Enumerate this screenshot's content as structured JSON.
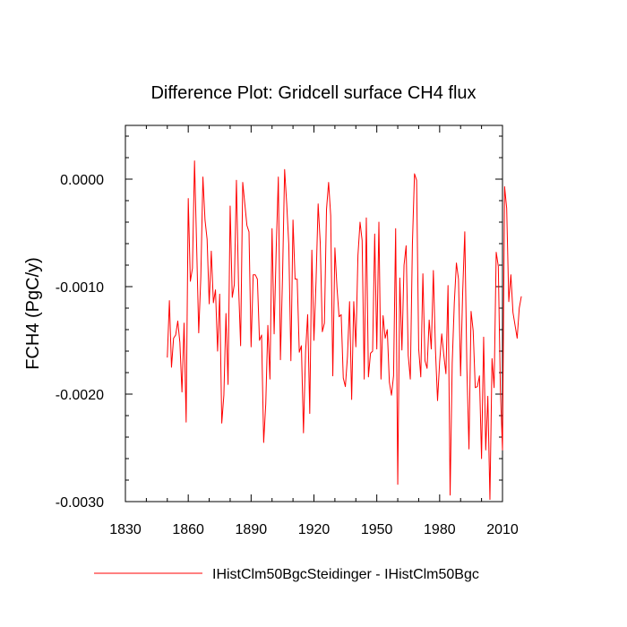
{
  "chart_data": {
    "type": "line",
    "title": "Difference Plot: Gridcell surface CH4 flux",
    "ylabel": "FCH4  (PgC/y)",
    "xlabel": "",
    "xlim": [
      1830,
      2010
    ],
    "ylim": [
      -0.003,
      0.0005
    ],
    "x_ticks": [
      {
        "value": 1830,
        "label": "1830"
      },
      {
        "value": 1860,
        "label": "1860"
      },
      {
        "value": 1890,
        "label": "1890"
      },
      {
        "value": 1920,
        "label": "1920"
      },
      {
        "value": 1950,
        "label": "1950"
      },
      {
        "value": 1980,
        "label": "1980"
      },
      {
        "value": 2010,
        "label": "2010"
      }
    ],
    "y_ticks": [
      {
        "value": 0.0,
        "label": "0.0000"
      },
      {
        "value": -0.001,
        "label": "-0.0010"
      },
      {
        "value": -0.002,
        "label": "-0.0020"
      },
      {
        "value": -0.003,
        "label": "-0.0030"
      }
    ],
    "grid": false,
    "legend_position": "bottom",
    "series": [
      {
        "name": "IHistClm50BgcSteidinger - IHistClm50Bgc",
        "color": "#ff0000",
        "x_start": 1850,
        "x_step": 1,
        "values": [
          -0.00166,
          -0.00113,
          -0.00175,
          -0.00148,
          -0.00145,
          -0.00132,
          -0.00152,
          -0.00198,
          -0.00134,
          -0.00226,
          -0.00018,
          -0.00095,
          -0.00083,
          0.00017,
          -0.00062,
          -0.00143,
          -0.00091,
          2e-05,
          -0.00038,
          -0.00056,
          -0.00116,
          -0.00067,
          -0.00115,
          -0.00103,
          -0.0016,
          -0.00107,
          -0.00227,
          -0.00201,
          -0.00125,
          -0.00191,
          -0.00025,
          -0.0011,
          -0.00098,
          -1e-05,
          -0.00098,
          -0.00155,
          -3e-05,
          -0.00023,
          -0.00043,
          -0.00049,
          -0.00156,
          -0.00089,
          -0.00089,
          -0.00093,
          -0.0015,
          -0.00145,
          -0.00245,
          -0.00209,
          -0.00136,
          -0.00186,
          -0.00046,
          -0.00144,
          -0.00064,
          2e-05,
          -0.00168,
          -0.00091,
          9e-05,
          -0.00023,
          -0.00061,
          -0.00169,
          -0.00038,
          -0.00093,
          -0.00093,
          -0.00161,
          -0.00155,
          -0.00236,
          -0.00161,
          -0.00126,
          -0.00218,
          -0.00066,
          -0.0015,
          -0.00095,
          -0.00023,
          -0.00059,
          -0.00142,
          -0.00134,
          -0.00028,
          -3e-05,
          -0.00034,
          -0.00183,
          -0.00064,
          -0.00101,
          -0.00128,
          -0.00126,
          -0.00185,
          -0.00193,
          -0.00165,
          -0.00114,
          -0.00205,
          -0.00114,
          -0.00156,
          -0.00071,
          -0.0004,
          -0.00057,
          -0.00186,
          -0.00036,
          -0.00184,
          -0.00162,
          -0.0016,
          -0.00051,
          -0.00158,
          -0.0004,
          -0.00186,
          -0.00127,
          -0.00148,
          -0.0014,
          -0.00189,
          -0.00201,
          -0.00183,
          -0.00046,
          -0.00284,
          -0.00092,
          -0.00159,
          -0.0008,
          -0.00062,
          -0.00164,
          -0.00186,
          -0.0006,
          5e-05,
          -1e-05,
          -0.00158,
          -0.00184,
          -0.00088,
          -0.00169,
          -0.00176,
          -0.00131,
          -0.00158,
          -0.00085,
          -0.00159,
          -0.00206,
          -0.0017,
          -0.00144,
          -0.00164,
          -0.00181,
          -0.00099,
          -0.00294,
          -0.00171,
          -0.00115,
          -0.00078,
          -0.00093,
          -0.00183,
          -0.00105,
          -0.00049,
          -0.00176,
          -0.00251,
          -0.00123,
          -0.00141,
          -0.00194,
          -0.00193,
          -0.00183,
          -0.0026,
          -0.00147,
          -0.00252,
          -0.00202,
          -0.00298,
          -0.00167,
          -0.00194,
          -0.00068,
          -0.00081,
          -0.00196,
          -0.00252,
          -7e-05,
          -0.00027,
          -0.00114,
          -0.00089,
          -0.00124,
          -0.00136,
          -0.00148,
          -0.0012,
          -0.00109
        ]
      }
    ]
  }
}
